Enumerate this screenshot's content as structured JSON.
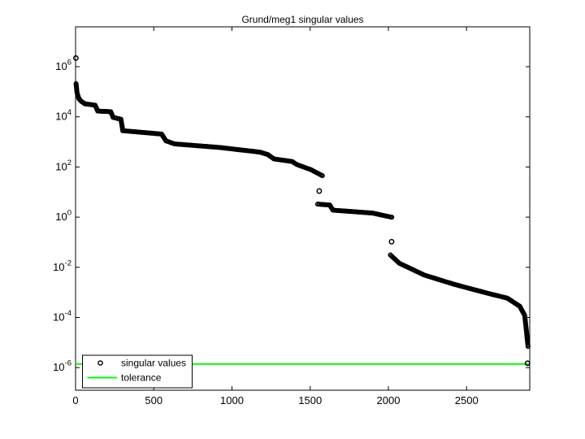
{
  "title": "Grund/meg1 singular values",
  "colors": {
    "marker": "#000000",
    "tolerance": "#00ff00",
    "axis": "#000000",
    "background": "#ffffff"
  },
  "axes": {
    "x_tick_labels": [
      "0",
      "500",
      "1000",
      "1500",
      "2000",
      "2500"
    ],
    "x_tick_values": [
      0,
      500,
      1000,
      1500,
      2000,
      2500
    ],
    "y_tick_exponents": [
      6,
      4,
      2,
      0,
      -2,
      -4,
      -6
    ],
    "y_tick_base": "10",
    "y_scale": "log"
  },
  "legend": {
    "items": [
      {
        "label": "singular values",
        "type": "marker"
      },
      {
        "label": "tolerance",
        "type": "line"
      }
    ]
  },
  "chart_data": {
    "type": "scatter",
    "title": "Grund/meg1 singular values",
    "xlabel": "",
    "ylabel": "",
    "x_range": [
      0,
      2904
    ],
    "y_scale": "log",
    "y_tick_values": [
      1000000.0,
      10000.0,
      100.0,
      1,
      0.01,
      0.0001,
      1e-06
    ],
    "grid": false,
    "legend_position": "southwest",
    "tolerance_value": 1.4e-06,
    "series": [
      {
        "name": "singular values",
        "marker": "open-circle",
        "color": "#000000",
        "isolated_points": [
          [
            2,
            2200000
          ],
          [
            1558,
            11
          ],
          [
            2021,
            0.105
          ],
          [
            2890,
            1.5e-06
          ]
        ],
        "chains": [
          [
            [
              3,
              210000
            ],
            [
              7,
              130000
            ],
            [
              10,
              87000
            ],
            [
              22,
              52000
            ],
            [
              40,
              40000
            ],
            [
              60,
              33000
            ],
            [
              125,
              29000
            ],
            [
              142,
              17000
            ],
            [
              225,
              16000
            ],
            [
              240,
              9500
            ],
            [
              290,
              8000
            ],
            [
              302,
              2800
            ],
            [
              550,
              2050
            ],
            [
              578,
              1100
            ],
            [
              634,
              830
            ],
            [
              920,
              600
            ],
            [
              1180,
              390
            ],
            [
              1230,
              310
            ],
            [
              1268,
              210
            ],
            [
              1385,
              165
            ],
            [
              1415,
              125
            ],
            [
              1505,
              78
            ],
            [
              1578,
              45
            ]
          ],
          [
            [
              1548,
              3.3
            ],
            [
              1625,
              3.05
            ],
            [
              1645,
              1.9
            ],
            [
              1900,
              1.45
            ],
            [
              1960,
              1.2
            ],
            [
              2022,
              0.99
            ]
          ],
          [
            [
              2013,
              0.031
            ],
            [
              2070,
              0.0145
            ],
            [
              2230,
              0.0049
            ],
            [
              2420,
              0.0021
            ],
            [
              2630,
              0.00094
            ],
            [
              2760,
              0.00059
            ],
            [
              2840,
              0.00028
            ],
            [
              2872,
              0.00012
            ],
            [
              2893,
              7e-06
            ]
          ]
        ]
      },
      {
        "name": "tolerance",
        "type": "horizontal-line",
        "color": "#00ff00",
        "value": 1.4e-06
      }
    ]
  }
}
